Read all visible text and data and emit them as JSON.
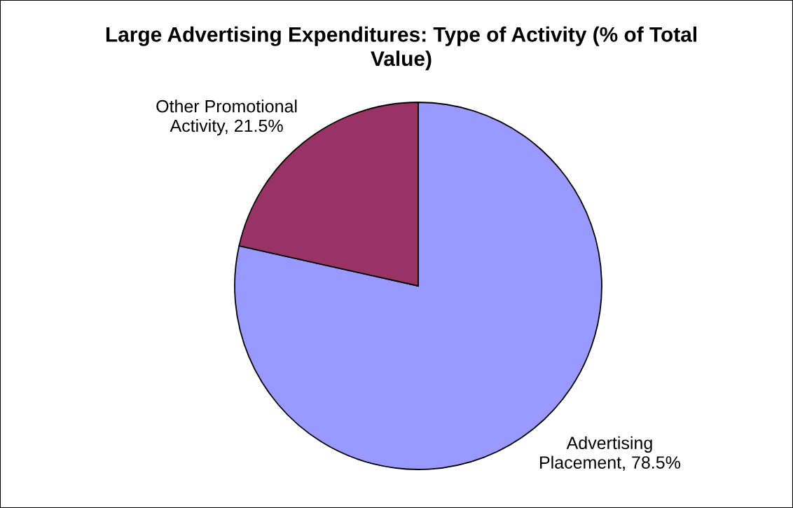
{
  "chart_data": {
    "type": "pie",
    "title": "Large Advertising Expenditures: Type of Activity (% of Total\nValue)",
    "categories": [
      "Advertising\nPlacement",
      "Other Promotional\nActivity"
    ],
    "values": [
      78.5,
      21.5
    ],
    "colors": [
      "#9999ff",
      "#993366"
    ],
    "value_labels": [
      "78.5%",
      "21.5%"
    ]
  }
}
